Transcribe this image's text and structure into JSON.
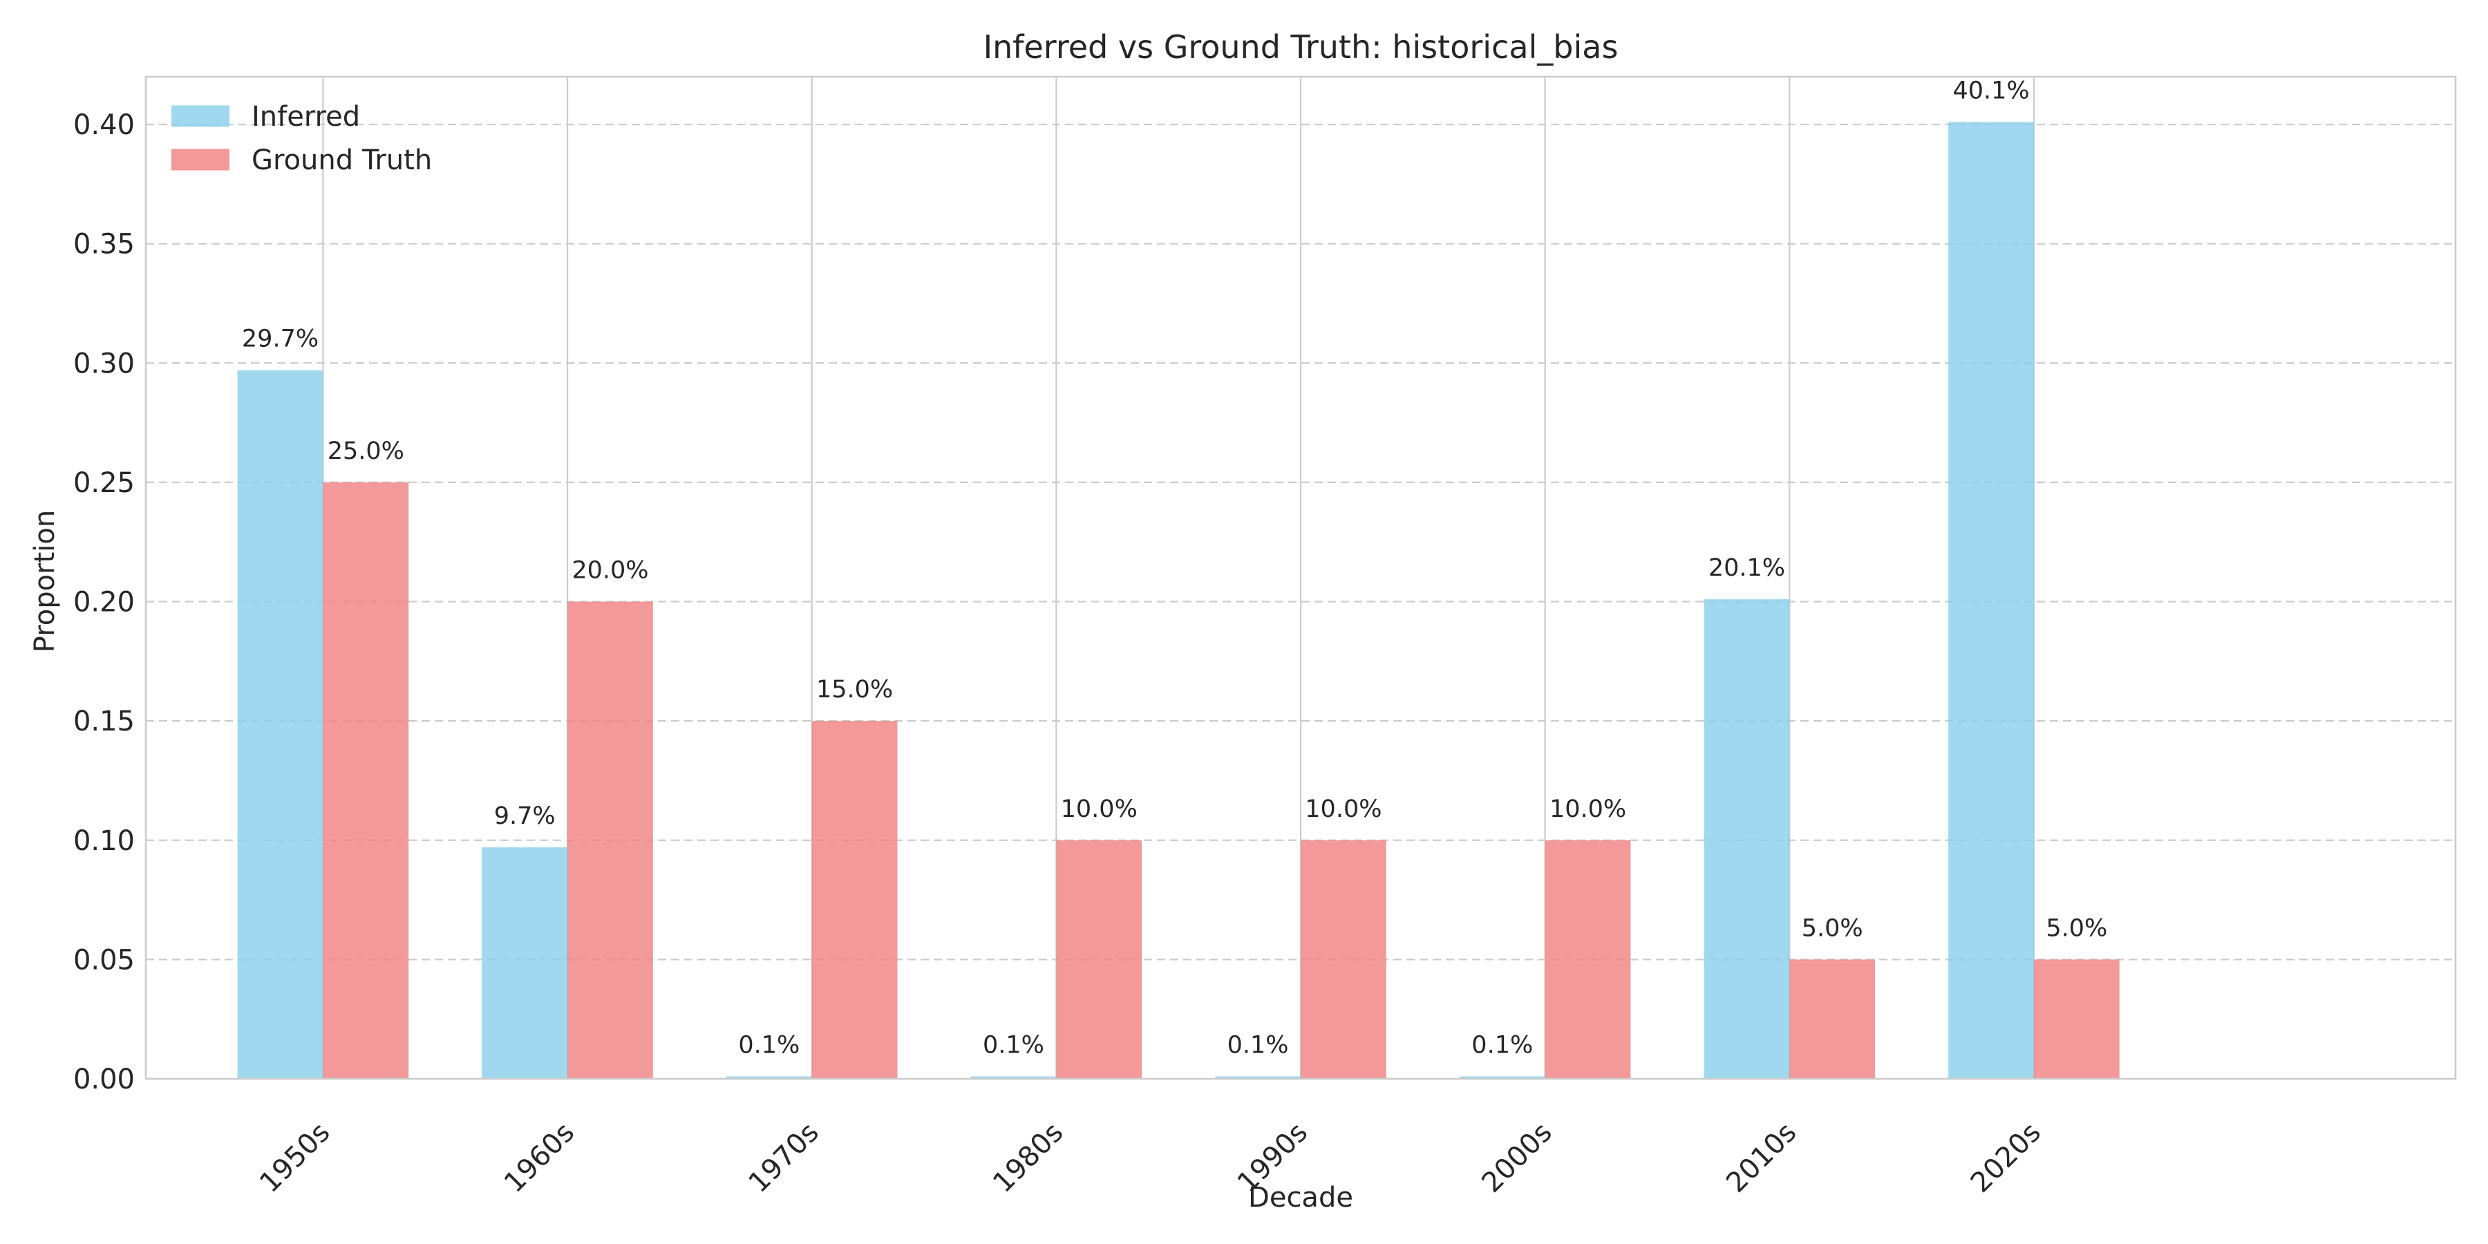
{
  "chart_data": {
    "type": "bar",
    "title": "Inferred vs Ground Truth: historical_bias",
    "xlabel": "Decade",
    "ylabel": "Proportion",
    "categories": [
      "1950s",
      "1960s",
      "1970s",
      "1980s",
      "1990s",
      "2000s",
      "2010s",
      "2020s"
    ],
    "series": [
      {
        "name": "Inferred",
        "color": "#87CEEB",
        "values": [
          0.297,
          0.097,
          0.001,
          0.001,
          0.001,
          0.001,
          0.201,
          0.401
        ],
        "labels": [
          "29.7%",
          "9.7%",
          "0.1%",
          "0.1%",
          "0.1%",
          "0.1%",
          "20.1%",
          "40.1%"
        ]
      },
      {
        "name": "Ground Truth",
        "color": "#F08080",
        "values": [
          0.25,
          0.2,
          0.15,
          0.1,
          0.1,
          0.1,
          0.05,
          0.05
        ],
        "labels": [
          "25.0%",
          "20.0%",
          "15.0%",
          "10.0%",
          "10.0%",
          "10.0%",
          "5.0%",
          "5.0%"
        ]
      }
    ],
    "ylim": [
      0,
      0.42
    ],
    "yticks": [
      0.0,
      0.05,
      0.1,
      0.15,
      0.2,
      0.25,
      0.3,
      0.35,
      0.4
    ],
    "ytick_labels": [
      "0.00",
      "0.05",
      "0.10",
      "0.15",
      "0.20",
      "0.25",
      "0.30",
      "0.35",
      "0.40"
    ],
    "grid": true,
    "legend_position": "top-left"
  }
}
